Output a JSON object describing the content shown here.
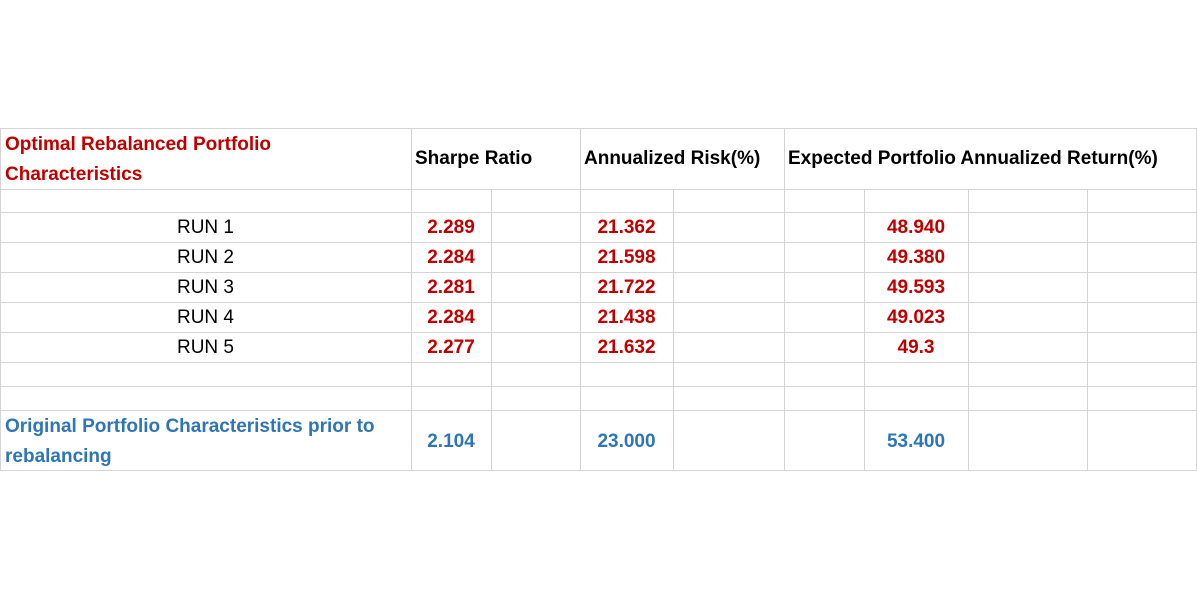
{
  "table": {
    "header": {
      "title_line1": "Optimal Rebalanced Portfolio",
      "title_line2": "Characteristics",
      "col_sharpe": "Sharpe Ratio",
      "col_risk": "Annualized Risk(%)",
      "col_return": "Expected Portfolio Annualized Return(%)"
    },
    "runs": [
      {
        "label": "RUN 1",
        "sharpe": "2.289",
        "risk": "21.362",
        "ret": "48.940"
      },
      {
        "label": "RUN 2",
        "sharpe": "2.284",
        "risk": "21.598",
        "ret": "49.380"
      },
      {
        "label": "RUN 3",
        "sharpe": "2.281",
        "risk": "21.722",
        "ret": "49.593"
      },
      {
        "label": "RUN 4",
        "sharpe": "2.284",
        "risk": "21.438",
        "ret": "49.023"
      },
      {
        "label": "RUN 5",
        "sharpe": "2.277",
        "risk": "21.632",
        "ret": "49.3"
      }
    ],
    "original": {
      "label_line1": "Original Portfolio Characteristics prior to",
      "label_line2": "rebalancing",
      "sharpe": "2.104",
      "risk": "23.000",
      "ret": "53.400"
    },
    "colors": {
      "run_values": "#c00000",
      "title": "#c00000",
      "original": "#2e75b6",
      "gridlines": "#d4d4d4"
    }
  }
}
